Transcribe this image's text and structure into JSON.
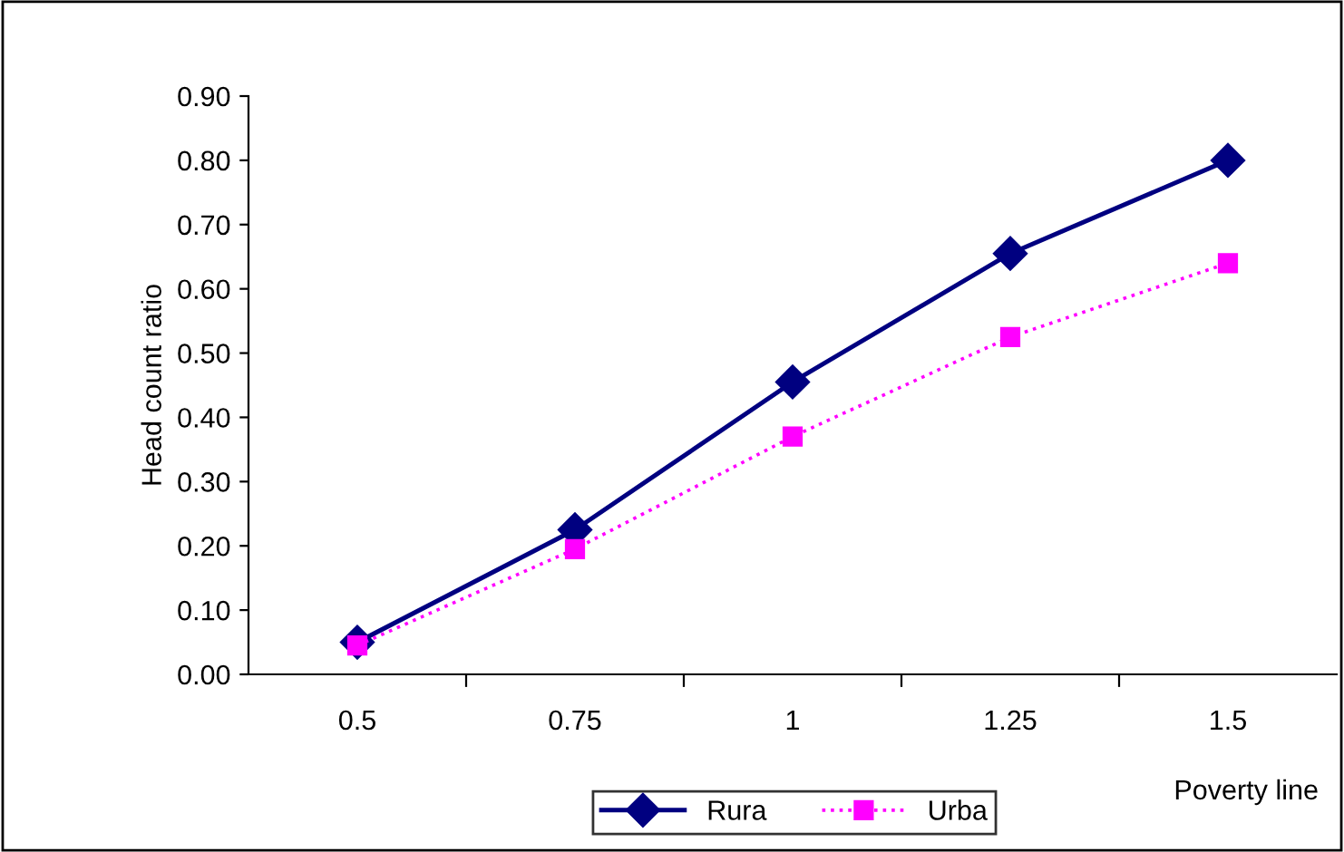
{
  "chart_data": {
    "type": "line",
    "xlabel": "Poverty line",
    "ylabel": "Head count ratio",
    "categories": [
      "0.5",
      "0.75",
      "1",
      "1.25",
      "1.5"
    ],
    "series": [
      {
        "name": "Rura",
        "color": "#000080",
        "values": [
          0.05,
          0.225,
          0.455,
          0.655,
          0.8
        ],
        "marker": "diamond",
        "line_style": "solid"
      },
      {
        "name": "Urba",
        "color": "#ff00ff",
        "values": [
          0.045,
          0.195,
          0.37,
          0.525,
          0.64
        ],
        "marker": "square",
        "line_style": "dotted"
      }
    ],
    "ylim": [
      0,
      0.9
    ],
    "yticks": [
      {
        "value": 0,
        "label": "0.00"
      },
      {
        "value": 0.1,
        "label": "0.10"
      },
      {
        "value": 0.2,
        "label": "0.20"
      },
      {
        "value": 0.3,
        "label": "0.30"
      },
      {
        "value": 0.4,
        "label": "0.40"
      },
      {
        "value": 0.5,
        "label": "0.50"
      },
      {
        "value": 0.6,
        "label": "0.60"
      },
      {
        "value": 0.7,
        "label": "0.70"
      },
      {
        "value": 0.8,
        "label": "0.80"
      },
      {
        "value": 0.9,
        "label": "0.90"
      }
    ],
    "grid": false,
    "legend": "bottom"
  }
}
